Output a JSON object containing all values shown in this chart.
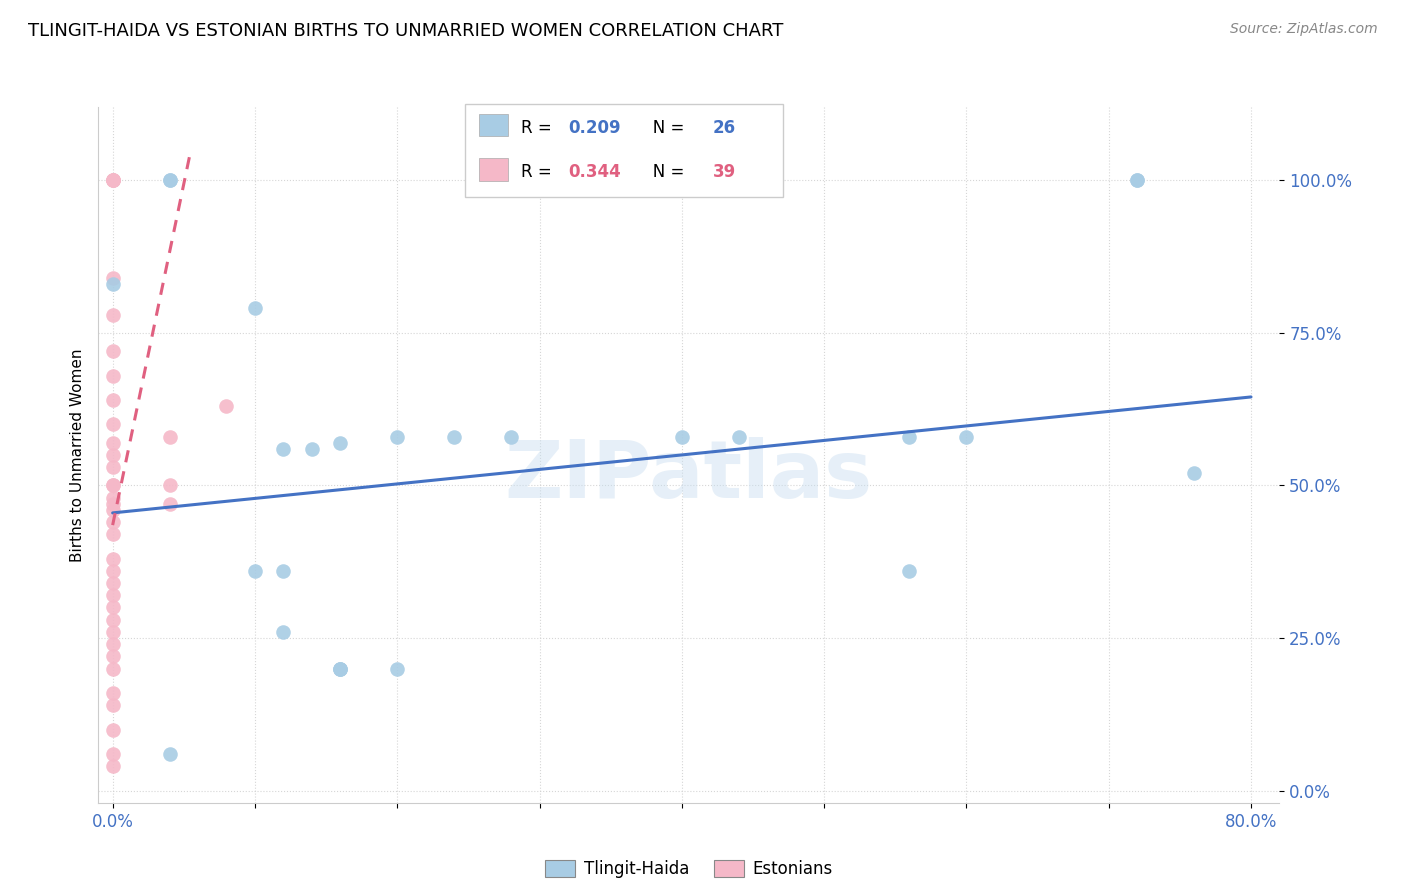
{
  "title": "TLINGIT-HAIDA VS ESTONIAN BIRTHS TO UNMARRIED WOMEN CORRELATION CHART",
  "source": "Source: ZipAtlas.com",
  "ylabel": "Births to Unmarried Women",
  "ytick_labels": [
    "0.0%",
    "25.0%",
    "50.0%",
    "75.0%",
    "100.0%"
  ],
  "ytick_values": [
    0.0,
    0.25,
    0.5,
    0.75,
    1.0
  ],
  "xlim": [
    -0.01,
    0.82
  ],
  "ylim": [
    -0.02,
    1.12
  ],
  "legend_blue_label": "Tlingit-Haida",
  "legend_pink_label": "Estonians",
  "blue_color": "#a8cce4",
  "pink_color": "#f5b8c8",
  "blue_line_color": "#4472c4",
  "pink_line_color": "#e06080",
  "watermark": "ZIPatlas",
  "tlingit_x": [
    0.0,
    0.04,
    0.04,
    0.1,
    0.12,
    0.14,
    0.16,
    0.2,
    0.24,
    0.28,
    0.4,
    0.44,
    0.56,
    0.6,
    0.72,
    0.76,
    0.1,
    0.12,
    0.16,
    0.16,
    0.2,
    0.04,
    0.72,
    0.56,
    0.16,
    0.12
  ],
  "tlingit_y": [
    0.83,
    1.0,
    1.0,
    0.79,
    0.56,
    0.56,
    0.57,
    0.58,
    0.58,
    0.58,
    0.58,
    0.58,
    0.58,
    0.58,
    1.0,
    0.52,
    0.36,
    0.36,
    0.2,
    0.2,
    0.2,
    0.06,
    1.0,
    0.36,
    0.2,
    0.26
  ],
  "estonian_x": [
    0.0,
    0.0,
    0.0,
    0.0,
    0.0,
    0.0,
    0.0,
    0.0,
    0.0,
    0.0,
    0.0,
    0.0,
    0.0,
    0.0,
    0.0,
    0.0,
    0.0,
    0.0,
    0.0,
    0.0,
    0.0,
    0.0,
    0.0,
    0.0,
    0.0,
    0.0,
    0.0,
    0.04,
    0.04,
    0.04,
    0.08,
    0.0,
    0.0,
    0.0,
    0.0,
    0.0,
    0.0,
    0.0,
    0.0
  ],
  "estonian_y": [
    1.0,
    1.0,
    1.0,
    1.0,
    0.84,
    0.78,
    0.72,
    0.68,
    0.64,
    0.6,
    0.57,
    0.53,
    0.5,
    0.46,
    0.44,
    0.42,
    0.38,
    0.36,
    0.34,
    0.32,
    0.3,
    0.28,
    0.26,
    0.24,
    0.22,
    0.2,
    0.16,
    0.58,
    0.5,
    0.47,
    0.63,
    0.5,
    0.47,
    0.14,
    0.1,
    0.06,
    0.04,
    0.48,
    0.55
  ],
  "blue_trend_x": [
    0.0,
    0.8
  ],
  "blue_trend_y": [
    0.455,
    0.645
  ],
  "pink_trend_x": [
    0.0,
    0.055
  ],
  "pink_trend_y": [
    0.435,
    1.05
  ]
}
